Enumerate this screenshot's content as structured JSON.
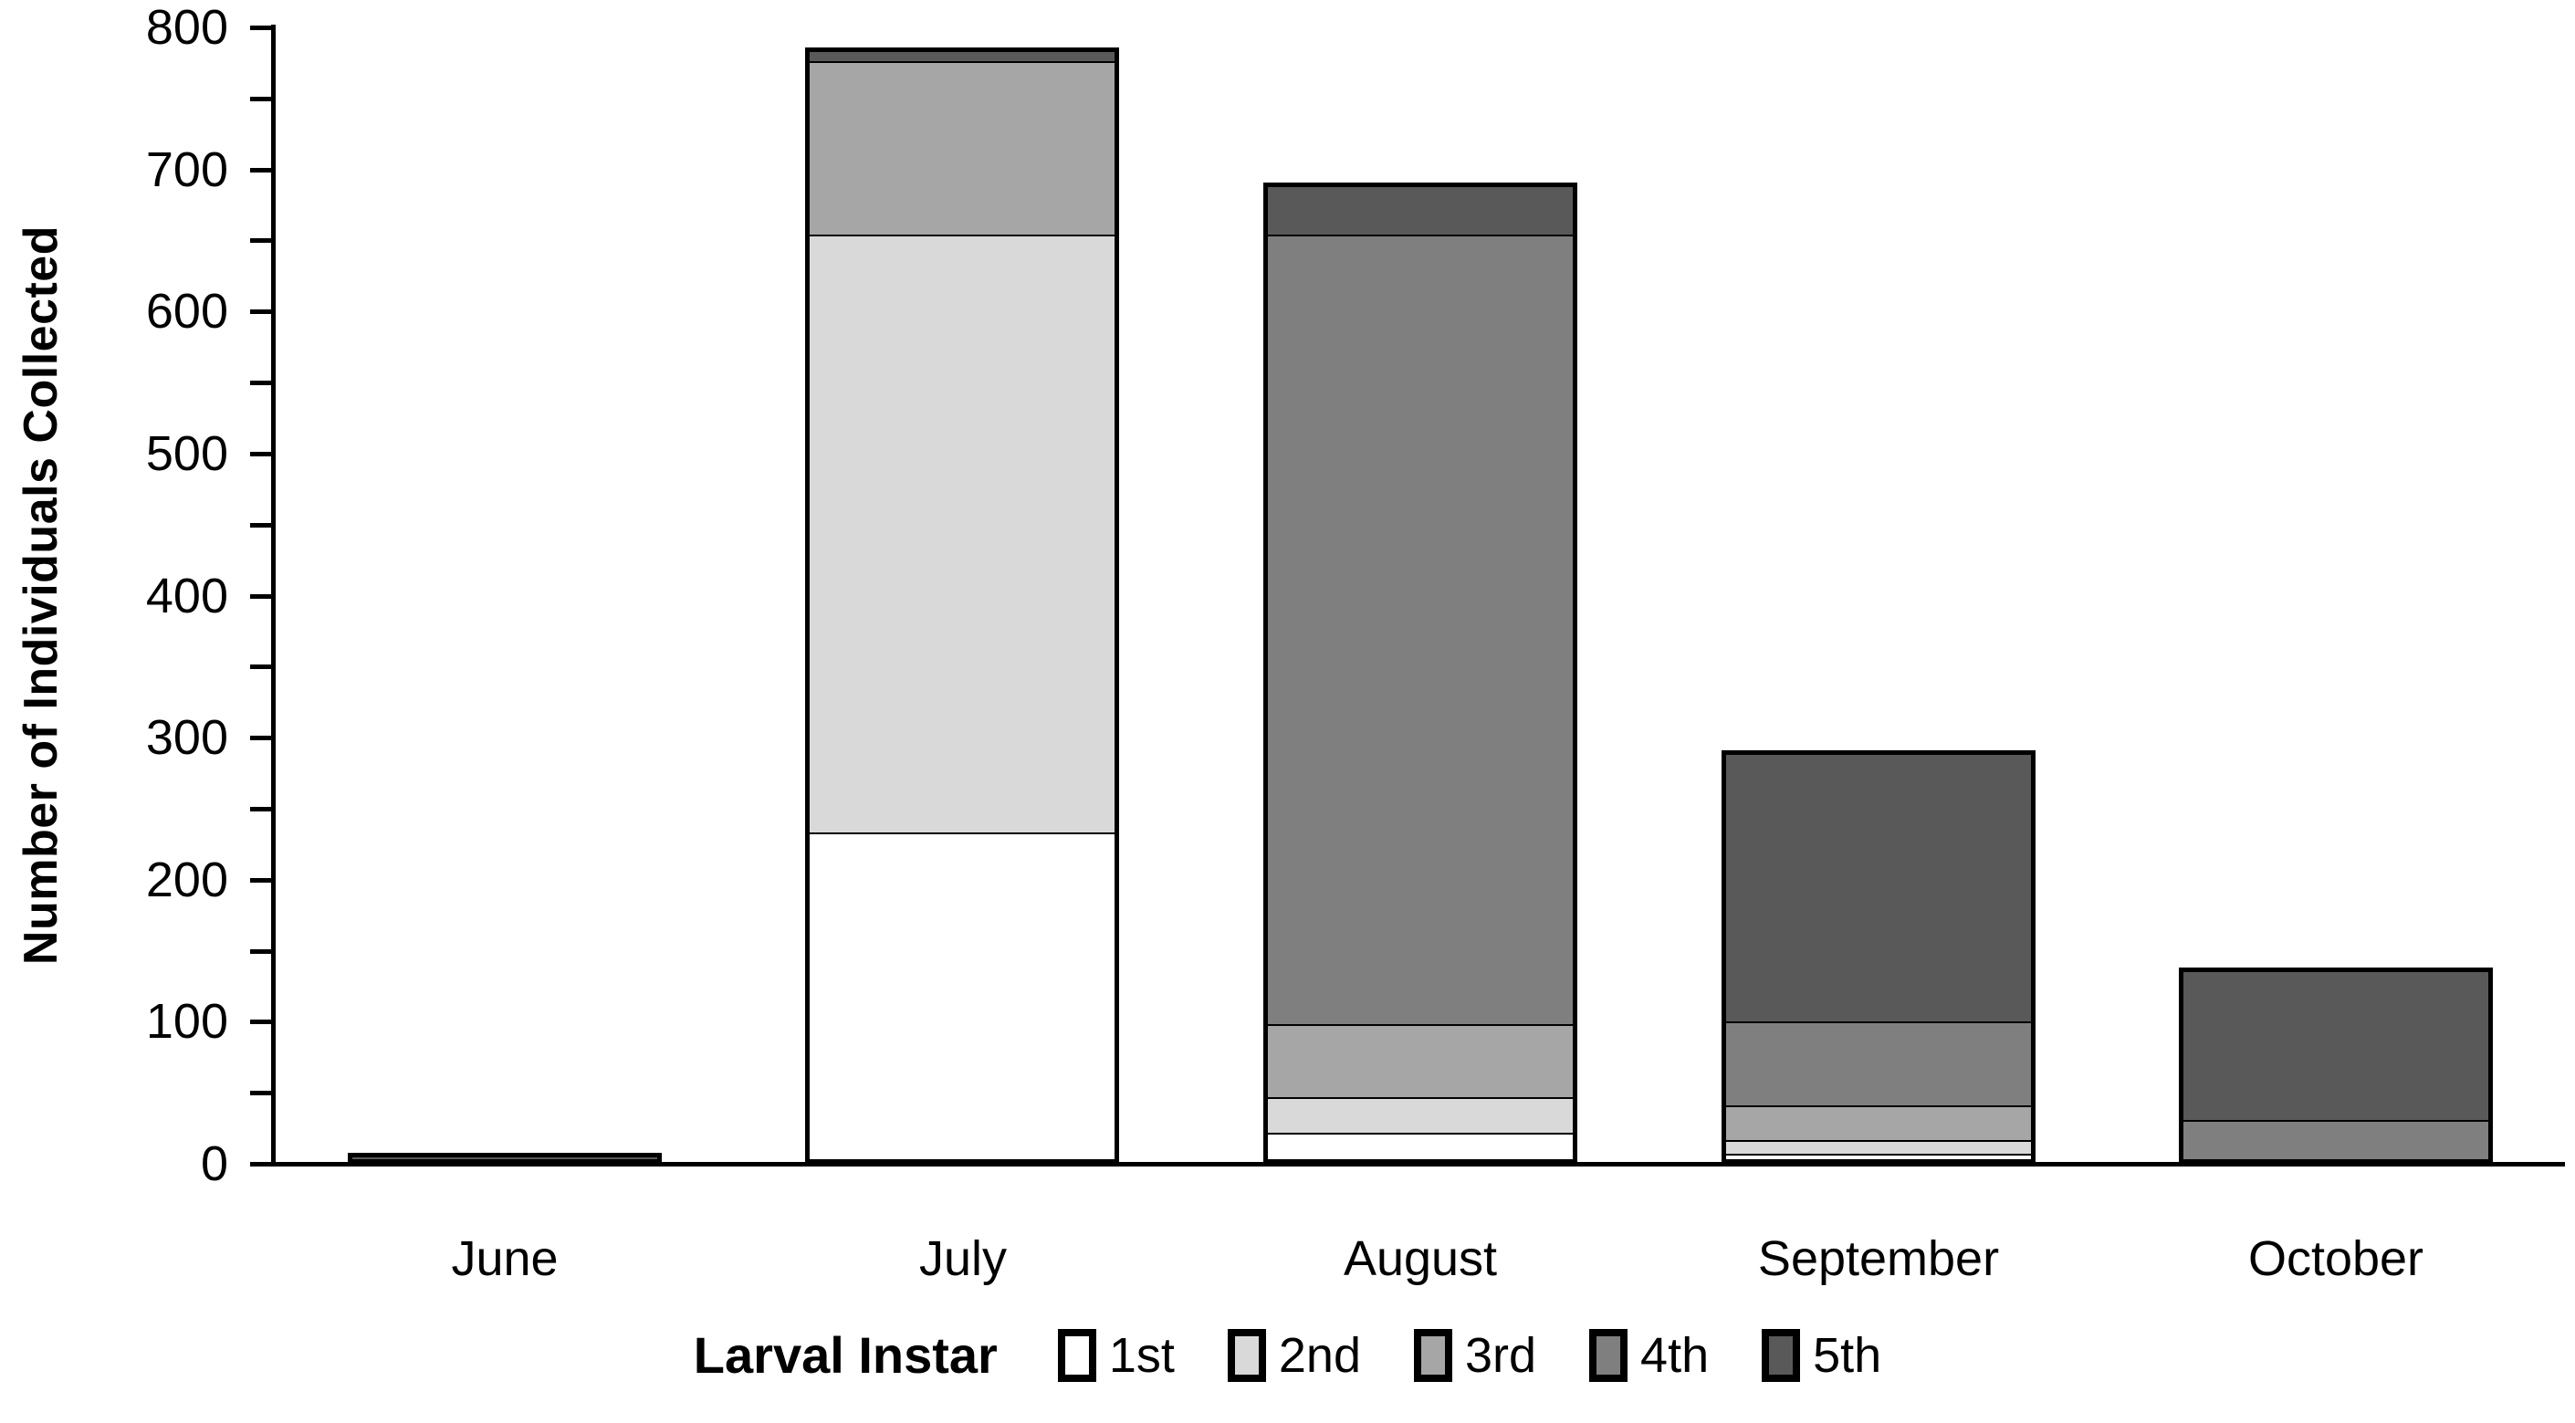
{
  "chart_data": {
    "type": "bar",
    "stacked": true,
    "title": "",
    "xlabel": "",
    "ylabel": "Number of Individuals Collected",
    "ylim": [
      0,
      800
    ],
    "ytick_major": 100,
    "ytick_minor": 50,
    "ytick_labels": [
      "0",
      "100",
      "200",
      "300",
      "400",
      "500",
      "600",
      "700",
      "800"
    ],
    "grid": false,
    "categories": [
      "June",
      "July",
      "August",
      "September",
      "October"
    ],
    "legend_title": "Larval Instar",
    "legend_position": "bottom",
    "axis_color": "#000000",
    "bar_border_color": "#000000",
    "series": [
      {
        "name": "1st",
        "color": "#ffffff",
        "values": [
          0,
          233,
          22,
          7,
          0
        ]
      },
      {
        "name": "2nd",
        "color": "#d9d9d9",
        "values": [
          0,
          421,
          25,
          10,
          0
        ]
      },
      {
        "name": "3rd",
        "color": "#a6a6a6",
        "values": [
          0,
          122,
          51,
          24,
          0
        ]
      },
      {
        "name": "4th",
        "color": "#7f7f7f",
        "values": [
          0,
          0,
          556,
          59,
          31
        ]
      },
      {
        "name": "5th",
        "color": "#595959",
        "values": [
          8,
          10,
          37,
          191,
          107
        ]
      }
    ],
    "totals": [
      8,
      786,
      691,
      291,
      138
    ]
  }
}
